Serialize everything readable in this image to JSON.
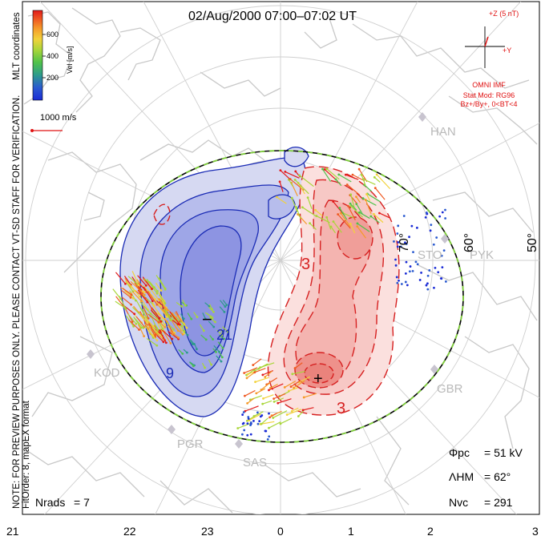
{
  "title": "02/Aug/2000 07:00–07:02 UT",
  "coords_label": "MLT coordinates",
  "note_line1": "NOTE: FOR PREVIEW PURPOSES ONLY. PLEASE CONTACT VT-SD STAFF FOR VERIFICATION.",
  "note_line2": "FitOrder: 8, mapEX format",
  "colorbar": {
    "label": "Vel [m/s]",
    "ticks": [
      "600",
      "400",
      "200"
    ],
    "colors": [
      "#1a2bd6",
      "#2a5ad0",
      "#2d9b8c",
      "#4fc24a",
      "#a9d63a",
      "#f2d23a",
      "#f59a2a",
      "#ef5a22",
      "#e21a1a"
    ]
  },
  "scale_label": "1000 m/s",
  "imf": {
    "z_label": "+Z (5 nT)",
    "y_label": "+Y",
    "source": "OMNI IMF",
    "model_line1": "Stat Mod: RG96",
    "model_line2": "Bz+/By+, 0<BT<4"
  },
  "stats": {
    "phi_pc_label": "Φpc",
    "phi_pc_value": "= 51 kV",
    "lambda_label": "ΛHM",
    "lambda_value": "= 62°",
    "nvc_label": "Nvc",
    "nvc_value": "= 291",
    "nrads_label": "Nrads",
    "nrads_value": "= 7"
  },
  "mlt_ticks": [
    "21",
    "22",
    "23",
    "0",
    "1",
    "2",
    "3"
  ],
  "latitude_labels": [
    "70°",
    "60°",
    "50°"
  ],
  "stations": [
    "HAN",
    "STO",
    "PYK",
    "KOD",
    "GBR",
    "PGR",
    "SAS"
  ],
  "contour_labels": [
    "−",
    "21",
    "9",
    "3",
    "3",
    "+"
  ],
  "colors": {
    "positive_contour": "#d62020",
    "negative_contour": "#1a2bb5",
    "hmb_boundary": "#7fcf3a",
    "coastline": "#c8c8c8",
    "grid": "#cfcfcf"
  }
}
